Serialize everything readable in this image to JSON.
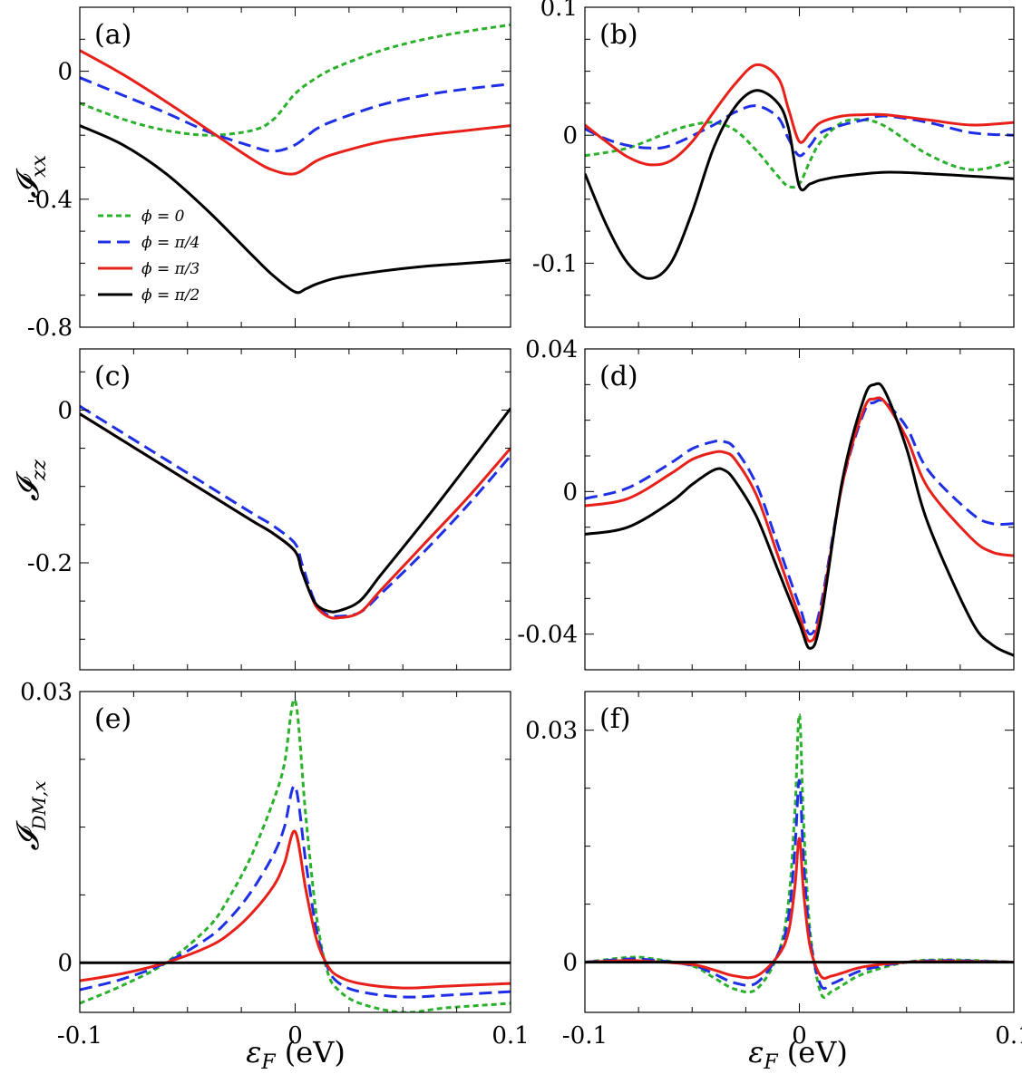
{
  "chart_data": [
    {
      "type": "line",
      "panel": "(a)",
      "ylabel": "𝓘ₓₓ",
      "xlim": [
        -0.1,
        0.1
      ],
      "ylim": [
        -0.8,
        0.2
      ],
      "yticks": [
        0,
        -0.4,
        -0.8
      ],
      "ytick_labels": [
        "0",
        "-0.4",
        "-0.8"
      ],
      "legend": [
        "ϕ = 0",
        "ϕ = π/4",
        "ϕ = π/3",
        "ϕ = π/2"
      ],
      "series": [
        {
          "name": "ϕ = 0",
          "x": [
            -0.1,
            -0.08,
            -0.06,
            -0.04,
            -0.02,
            -0.01,
            0,
            0.01,
            0.02,
            0.04,
            0.06,
            0.08,
            0.1
          ],
          "values": [
            -0.1,
            -0.15,
            -0.185,
            -0.2,
            -0.185,
            -0.15,
            -0.07,
            -0.02,
            0.015,
            0.065,
            0.1,
            0.125,
            0.145
          ]
        },
        {
          "name": "ϕ = π/4",
          "x": [
            -0.1,
            -0.08,
            -0.06,
            -0.04,
            -0.02,
            -0.01,
            0,
            0.01,
            0.02,
            0.04,
            0.06,
            0.08,
            0.1
          ],
          "values": [
            -0.02,
            -0.075,
            -0.13,
            -0.19,
            -0.235,
            -0.25,
            -0.23,
            -0.18,
            -0.15,
            -0.105,
            -0.075,
            -0.055,
            -0.04
          ]
        },
        {
          "name": "ϕ = π/3",
          "x": [
            -0.1,
            -0.08,
            -0.06,
            -0.04,
            -0.02,
            -0.01,
            0,
            0.01,
            0.02,
            0.04,
            0.06,
            0.08,
            0.1
          ],
          "values": [
            0.065,
            -0.01,
            -0.095,
            -0.185,
            -0.275,
            -0.31,
            -0.32,
            -0.28,
            -0.255,
            -0.22,
            -0.2,
            -0.185,
            -0.17
          ]
        },
        {
          "name": "ϕ = π/2",
          "x": [
            -0.1,
            -0.08,
            -0.06,
            -0.04,
            -0.02,
            -0.01,
            0,
            0.005,
            0.01,
            0.02,
            0.04,
            0.06,
            0.08,
            0.1
          ],
          "values": [
            -0.17,
            -0.23,
            -0.32,
            -0.44,
            -0.575,
            -0.64,
            -0.69,
            -0.68,
            -0.665,
            -0.645,
            -0.625,
            -0.61,
            -0.6,
            -0.59
          ]
        }
      ]
    },
    {
      "type": "line",
      "panel": "(b)",
      "xlim": [
        -0.1,
        0.1
      ],
      "ylim": [
        -0.15,
        0.1
      ],
      "yticks": [
        0.1,
        0,
        -0.1
      ],
      "ytick_labels": [
        "0.1",
        "0",
        "-0.1"
      ],
      "series": [
        {
          "name": "ϕ = 0",
          "x": [
            -0.1,
            -0.08,
            -0.06,
            -0.05,
            -0.04,
            -0.03,
            -0.02,
            -0.01,
            -0.005,
            0,
            0.005,
            0.01,
            0.02,
            0.03,
            0.04,
            0.06,
            0.08,
            0.1
          ],
          "values": [
            -0.016,
            -0.01,
            0.003,
            0.008,
            0.01,
            0.004,
            -0.012,
            -0.032,
            -0.04,
            -0.038,
            -0.02,
            -0.005,
            0.01,
            0.012,
            0.007,
            -0.015,
            -0.027,
            -0.02
          ]
        },
        {
          "name": "ϕ = π/4",
          "x": [
            -0.1,
            -0.09,
            -0.08,
            -0.07,
            -0.06,
            -0.04,
            -0.03,
            -0.02,
            -0.01,
            -0.005,
            0,
            0.005,
            0.01,
            0.02,
            0.03,
            0.04,
            0.06,
            0.08,
            0.1
          ],
          "values": [
            0.005,
            -0.003,
            -0.008,
            -0.01,
            -0.008,
            0.008,
            0.018,
            0.023,
            0.014,
            -0.003,
            -0.016,
            -0.008,
            0.002,
            0.008,
            0.012,
            0.015,
            0.01,
            0.002,
            0
          ]
        },
        {
          "name": "ϕ = π/3",
          "x": [
            -0.1,
            -0.09,
            -0.08,
            -0.07,
            -0.06,
            -0.05,
            -0.04,
            -0.03,
            -0.02,
            -0.01,
            -0.005,
            0,
            0.005,
            0.01,
            0.02,
            0.03,
            0.04,
            0.06,
            0.08,
            0.1
          ],
          "values": [
            0.008,
            -0.005,
            -0.017,
            -0.023,
            -0.02,
            -0.005,
            0.018,
            0.04,
            0.055,
            0.045,
            0.02,
            -0.005,
            0.002,
            0.01,
            0.015,
            0.016,
            0.016,
            0.012,
            0.008,
            0.01
          ]
        },
        {
          "name": "ϕ = π/2",
          "x": [
            -0.1,
            -0.09,
            -0.08,
            -0.07,
            -0.06,
            -0.05,
            -0.04,
            -0.03,
            -0.02,
            -0.01,
            -0.005,
            0,
            0.005,
            0.01,
            0.02,
            0.04,
            0.06,
            0.08,
            0.1
          ],
          "values": [
            -0.03,
            -0.07,
            -0.1,
            -0.112,
            -0.1,
            -0.06,
            -0.01,
            0.022,
            0.035,
            0.025,
            0.005,
            -0.04,
            -0.038,
            -0.035,
            -0.032,
            -0.029,
            -0.03,
            -0.032,
            -0.034
          ]
        }
      ]
    },
    {
      "type": "line",
      "panel": "(c)",
      "ylabel": "𝓘_zz",
      "xlim": [
        -0.1,
        0.1
      ],
      "ylim": [
        -0.34,
        0.08
      ],
      "yticks": [
        0,
        -0.2
      ],
      "ytick_labels": [
        "0",
        "-0.2"
      ],
      "series": [
        {
          "name": "ϕ = π/4",
          "x": [
            -0.1,
            -0.08,
            -0.06,
            -0.04,
            -0.02,
            -0.01,
            0,
            0.003,
            0.007,
            0.01,
            0.015,
            0.02,
            0.03,
            0.04,
            0.06,
            0.08,
            0.1
          ],
          "values": [
            0.005,
            -0.03,
            -0.065,
            -0.1,
            -0.135,
            -0.152,
            -0.175,
            -0.2,
            -0.235,
            -0.255,
            -0.268,
            -0.27,
            -0.265,
            -0.24,
            -0.185,
            -0.125,
            -0.06
          ]
        },
        {
          "name": "ϕ = π/3",
          "x": [
            -0.1,
            -0.08,
            -0.06,
            -0.04,
            -0.02,
            -0.01,
            0,
            0.003,
            0.007,
            0.01,
            0.015,
            0.02,
            0.03,
            0.04,
            0.06,
            0.08,
            0.1
          ],
          "values": [
            -0.005,
            -0.04,
            -0.075,
            -0.11,
            -0.145,
            -0.162,
            -0.185,
            -0.21,
            -0.24,
            -0.258,
            -0.27,
            -0.272,
            -0.265,
            -0.235,
            -0.175,
            -0.115,
            -0.05
          ]
        },
        {
          "name": "ϕ = π/2",
          "x": [
            -0.1,
            -0.08,
            -0.06,
            -0.04,
            -0.02,
            -0.01,
            0,
            0.003,
            0.007,
            0.01,
            0.015,
            0.02,
            0.03,
            0.04,
            0.06,
            0.08,
            0.1
          ],
          "values": [
            -0.005,
            -0.04,
            -0.075,
            -0.11,
            -0.145,
            -0.162,
            -0.185,
            -0.21,
            -0.24,
            -0.255,
            -0.263,
            -0.263,
            -0.25,
            -0.215,
            -0.145,
            -0.072,
            0.002
          ]
        }
      ]
    },
    {
      "type": "line",
      "panel": "(d)",
      "xlim": [
        -0.1,
        0.1
      ],
      "ylim": [
        -0.05,
        0.04
      ],
      "yticks": [
        0.04,
        0,
        -0.04
      ],
      "ytick_labels": [
        "0.04",
        "0",
        "-0.04"
      ],
      "series": [
        {
          "name": "ϕ = π/4",
          "x": [
            -0.1,
            -0.08,
            -0.06,
            -0.05,
            -0.04,
            -0.035,
            -0.03,
            -0.02,
            -0.01,
            0,
            0.005,
            0.01,
            0.02,
            0.03,
            0.035,
            0.04,
            0.05,
            0.06,
            0.08,
            0.09,
            0.1
          ],
          "values": [
            -0.002,
            0.001,
            0.008,
            0.012,
            0.014,
            0.014,
            0.012,
            0.002,
            -0.015,
            -0.032,
            -0.04,
            -0.032,
            0.002,
            0.022,
            0.025,
            0.025,
            0.018,
            0.006,
            -0.006,
            -0.009,
            -0.009
          ]
        },
        {
          "name": "ϕ = π/3",
          "x": [
            -0.1,
            -0.08,
            -0.06,
            -0.05,
            -0.04,
            -0.035,
            -0.03,
            -0.02,
            -0.01,
            0,
            0.005,
            0.01,
            0.02,
            0.03,
            0.035,
            0.04,
            0.05,
            0.06,
            0.08,
            0.09,
            0.1
          ],
          "values": [
            -0.004,
            -0.002,
            0.005,
            0.009,
            0.011,
            0.011,
            0.009,
            -0.001,
            -0.018,
            -0.035,
            -0.042,
            -0.034,
            0.002,
            0.023,
            0.026,
            0.025,
            0.015,
            0.001,
            -0.013,
            -0.017,
            -0.018
          ]
        },
        {
          "name": "ϕ = π/2",
          "x": [
            -0.1,
            -0.08,
            -0.06,
            -0.05,
            -0.04,
            -0.035,
            -0.03,
            -0.02,
            -0.01,
            0,
            0.005,
            0.01,
            0.02,
            0.03,
            0.035,
            0.04,
            0.05,
            0.06,
            0.08,
            0.09,
            0.1
          ],
          "values": [
            -0.012,
            -0.01,
            -0.003,
            0.002,
            0.006,
            0.006,
            0.003,
            -0.007,
            -0.022,
            -0.037,
            -0.044,
            -0.036,
            0.003,
            0.026,
            0.03,
            0.028,
            0.012,
            -0.009,
            -0.036,
            -0.043,
            -0.046
          ]
        }
      ]
    },
    {
      "type": "line",
      "panel": "(e)",
      "ylabel": "𝓘_DM,x",
      "xlim": [
        -0.1,
        0.1
      ],
      "ylim": [
        -0.0055,
        0.03
      ],
      "yticks": [
        0.03,
        0
      ],
      "ytick_labels": [
        "0.03",
        "0"
      ],
      "series": [
        {
          "name": "ϕ = 0",
          "x": [
            -0.1,
            -0.08,
            -0.06,
            -0.04,
            -0.03,
            -0.02,
            -0.01,
            -0.005,
            0,
            0.005,
            0.01,
            0.015,
            0.02,
            0.03,
            0.05,
            0.07,
            0.1
          ],
          "values": [
            -0.0045,
            -0.0025,
            0,
            0.004,
            0.0075,
            0.012,
            0.018,
            0.022,
            0.029,
            0.016,
            0.005,
            -0.001,
            -0.003,
            -0.0045,
            -0.0055,
            -0.005,
            -0.0045
          ]
        },
        {
          "name": "ϕ = π/4",
          "x": [
            -0.1,
            -0.08,
            -0.06,
            -0.04,
            -0.03,
            -0.02,
            -0.01,
            -0.005,
            0,
            0.005,
            0.01,
            0.015,
            0.02,
            0.03,
            0.05,
            0.07,
            0.1
          ],
          "values": [
            -0.003,
            -0.0018,
            0,
            0.0028,
            0.005,
            0.008,
            0.012,
            0.015,
            0.0195,
            0.011,
            0.0035,
            -0.0005,
            -0.0022,
            -0.0032,
            -0.0038,
            -0.0036,
            -0.0032
          ]
        },
        {
          "name": "ϕ = π/3",
          "x": [
            -0.1,
            -0.08,
            -0.06,
            -0.04,
            -0.03,
            -0.02,
            -0.01,
            -0.005,
            0,
            0.005,
            0.01,
            0.015,
            0.02,
            0.03,
            0.05,
            0.07,
            0.1
          ],
          "values": [
            -0.002,
            -0.0012,
            0,
            0.0018,
            0.0033,
            0.0055,
            0.0085,
            0.011,
            0.0145,
            0.008,
            0.0025,
            -0.0003,
            -0.0015,
            -0.0023,
            -0.0028,
            -0.0026,
            -0.0023
          ]
        },
        {
          "name": "ϕ = π/2",
          "x": [
            -0.1,
            0.1
          ],
          "values": [
            0,
            0
          ]
        }
      ]
    },
    {
      "type": "line",
      "panel": "(f)",
      "xlim": [
        -0.1,
        0.1
      ],
      "ylim": [
        -0.0065,
        0.035
      ],
      "yticks": [
        0.03,
        0
      ],
      "ytick_labels": [
        "0.03",
        "0"
      ],
      "series": [
        {
          "name": "ϕ = 0",
          "x": [
            -0.1,
            -0.08,
            -0.07,
            -0.05,
            -0.04,
            -0.03,
            -0.02,
            -0.01,
            -0.005,
            -0.002,
            0,
            0.002,
            0.005,
            0.01,
            0.015,
            0.02,
            0.03,
            0.05,
            0.07,
            0.1
          ],
          "values": [
            0,
            0.0006,
            0.0005,
            -0.0005,
            -0.002,
            -0.0035,
            -0.0035,
            0.001,
            0.008,
            0.02,
            0.032,
            0.018,
            0.004,
            -0.004,
            -0.0038,
            -0.003,
            -0.0015,
            0,
            0.0003,
            0
          ]
        },
        {
          "name": "ϕ = π/4",
          "x": [
            -0.1,
            -0.08,
            -0.07,
            -0.05,
            -0.04,
            -0.03,
            -0.02,
            -0.01,
            -0.005,
            -0.002,
            0,
            0.002,
            0.005,
            0.01,
            0.015,
            0.02,
            0.03,
            0.05,
            0.07,
            0.1
          ],
          "values": [
            0,
            0.0004,
            0.0003,
            -0.0004,
            -0.0015,
            -0.0027,
            -0.0027,
            0.001,
            0.006,
            0.015,
            0.0235,
            0.013,
            0.003,
            -0.003,
            -0.0028,
            -0.0022,
            -0.001,
            0,
            0.0002,
            0
          ]
        },
        {
          "name": "ϕ = π/3",
          "x": [
            -0.1,
            -0.08,
            -0.07,
            -0.05,
            -0.04,
            -0.03,
            -0.02,
            -0.01,
            -0.005,
            -0.002,
            0,
            0.002,
            0.005,
            0.01,
            0.015,
            0.02,
            0.03,
            0.05,
            0.07,
            0.1
          ],
          "values": [
            0,
            0.0002,
            0.0001,
            -0.0003,
            -0.001,
            -0.0018,
            -0.0018,
            0.0008,
            0.004,
            0.01,
            0.016,
            0.009,
            0.002,
            -0.0018,
            -0.0018,
            -0.0014,
            -0.0006,
            0,
            0.0001,
            0
          ]
        },
        {
          "name": "ϕ = π/2",
          "x": [
            -0.1,
            0.1
          ],
          "values": [
            0,
            0
          ]
        }
      ]
    }
  ],
  "xtick_labels": [
    "-0.1",
    "0",
    "0.1"
  ],
  "xlabel": "ε",
  "xlabel_sub": "F",
  "xlabel_unit": " (eV)",
  "ylabels": {
    "a": {
      "main": "𝓘",
      "sub": "xx"
    },
    "c": {
      "main": "𝓘",
      "sub": "zz"
    },
    "e": {
      "main": "𝓘",
      "sub": "DM,x"
    }
  },
  "legend": {
    "title_prefix": "ϕ = ",
    "entries": [
      {
        "label": "ϕ = 0",
        "color": "#2ab02a",
        "dash": "dotted"
      },
      {
        "label": "ϕ = π/4",
        "color": "#1f2fe6",
        "dash": "dashed"
      },
      {
        "label": "ϕ = π/3",
        "color": "#e8201a",
        "dash": "solid"
      },
      {
        "label": "ϕ = π/2",
        "color": "#000000",
        "dash": "solid"
      }
    ]
  },
  "colors": {
    "ϕ = 0": "#2ab02a",
    "ϕ = π/4": "#1f2fe6",
    "ϕ = π/3": "#e8201a",
    "ϕ = π/2": "#000000"
  }
}
